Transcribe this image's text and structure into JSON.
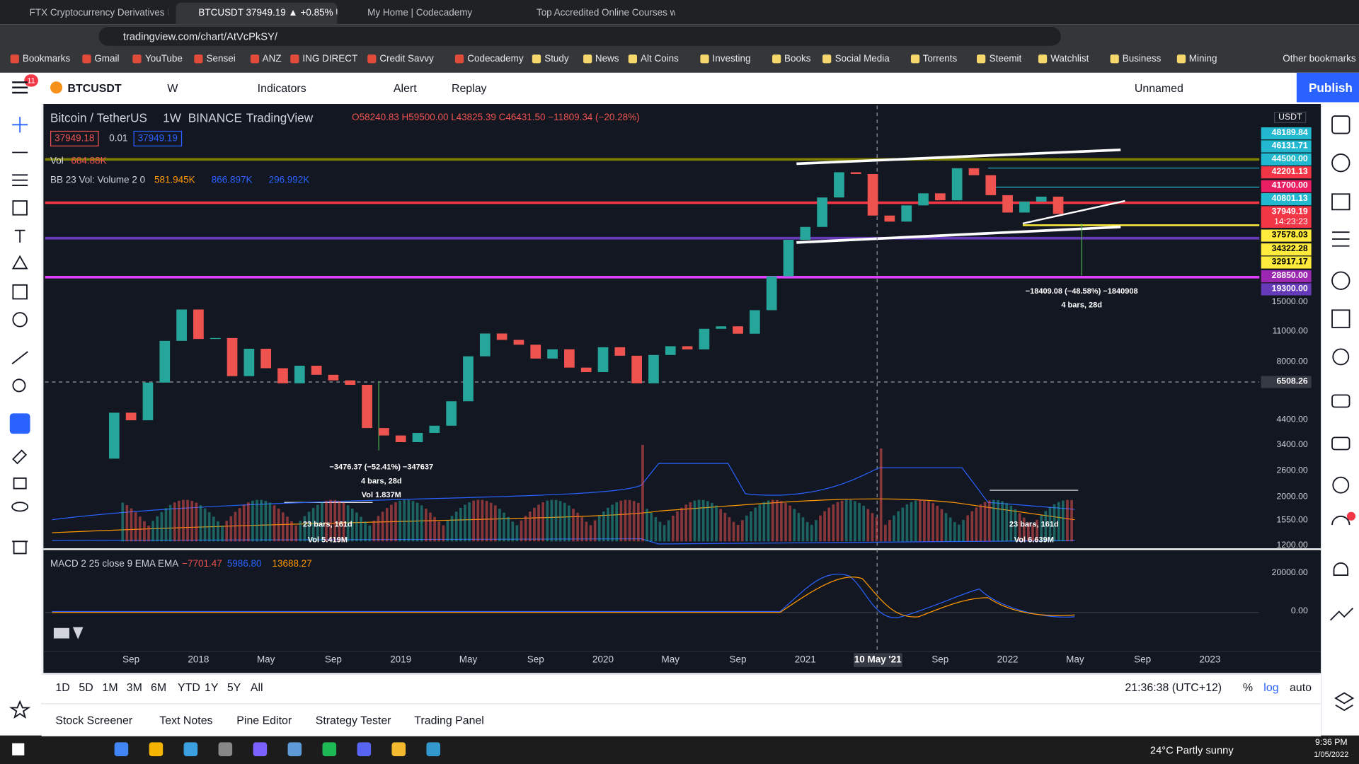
{
  "browser": {
    "tabs": [
      "FTX Cryptocurrency Derivatives E",
      "BTCUSDT 37949.19 ▲ +0.85% Un",
      "My Home | Codecademy",
      "Top Accredited Online Courses w"
    ],
    "url": "tradingview.com/chart/AtVcPkSY/",
    "bookmarks": [
      "Bookmarks",
      "Gmail",
      "YouTube",
      "Sensei",
      "ANZ",
      "ING DIRECT",
      "Credit Savvy",
      "Codecademy",
      "Study",
      "News",
      "Alt Coins",
      "Investing",
      "Books",
      "Social Media",
      "Torrents",
      "Steemit",
      "Watchlist",
      "Business",
      "Mining"
    ],
    "other_bookmarks": "Other bookmarks"
  },
  "toolbar": {
    "badge": "11",
    "symbol": "BTCUSDT",
    "interval": "W",
    "indicators": "Indicators",
    "alert": "Alert",
    "replay": "Replay",
    "layout": "Unnamed",
    "publish": "Publish"
  },
  "legend": {
    "symbol": "Bitcoin / TetherUS",
    "interval": "1W",
    "exchange": "BINANCE",
    "source": "TradingView",
    "ohlc": "O58240.83 H59500.00 L43825.39 C46431.50 −11809.34 (−20.28%)",
    "sell": "37949.18",
    "spread": "0.01",
    "buy": "37949.19",
    "vol_label": "Vol",
    "vol_value": "684.88K",
    "bb_label": "BB 23 Vol: Volume 2 0",
    "bb_values": [
      {
        "text": "581.945K",
        "color": "#ff9800"
      },
      {
        "text": "866.897K",
        "color": "#2962ff"
      },
      {
        "text": "296.992K",
        "color": "#2962ff"
      }
    ],
    "macd_label": "MACD 2 25 close 9 EMA EMA",
    "macd_values": [
      {
        "text": "−7701.47",
        "color": "#ef5350"
      },
      {
        "text": "5986.80",
        "color": "#2962ff"
      },
      {
        "text": "13688.27",
        "color": "#ff9800"
      }
    ]
  },
  "price_axis": {
    "currency": "USDT",
    "countdown": "14:23:23",
    "labels": [
      {
        "text": "48189.84",
        "color": "#22b8cf"
      },
      {
        "text": "46131.71",
        "color": "#22b8cf"
      },
      {
        "text": "44500.00",
        "color": "#22b8cf"
      },
      {
        "text": "42201.13",
        "color": "#f23645"
      },
      {
        "text": "41700.00",
        "color": "#e91e63"
      },
      {
        "text": "40801.13",
        "color": "#22b8cf"
      },
      {
        "text": "37949.19",
        "color": "#f23645"
      },
      {
        "text": "37578.03",
        "color": "#ffeb3b"
      },
      {
        "text": "34322.28",
        "color": "#ffeb3b"
      },
      {
        "text": "32917.17",
        "color": "#ffeb3b"
      },
      {
        "text": "28850.00",
        "color": "#9c27b0"
      },
      {
        "text": "19300.00",
        "color": "#673ab7"
      },
      {
        "text": "15000.00",
        "color": null
      },
      {
        "text": "11000.00",
        "color": null
      },
      {
        "text": "8000.00",
        "color": null
      },
      {
        "text": "6508.26",
        "color": "#363a45"
      },
      {
        "text": "4400.00",
        "color": null
      },
      {
        "text": "3400.00",
        "color": null
      },
      {
        "text": "2600.00",
        "color": null
      },
      {
        "text": "2000.00",
        "color": null
      },
      {
        "text": "1550.00",
        "color": null
      },
      {
        "text": "1200.00",
        "color": null
      }
    ]
  },
  "macd_axis": [
    "20000.00",
    "0.00"
  ],
  "time_axis": [
    "Sep",
    "2018",
    "May",
    "Sep",
    "2019",
    "May",
    "Sep",
    "2020",
    "May",
    "Sep",
    "2021",
    "10 May '21",
    "Sep",
    "2022",
    "May",
    "Sep",
    "2023"
  ],
  "measurements": [
    [
      "−18409.08 (−48.58%) −1840908",
      "4 bars, 28d"
    ],
    [
      "−3476.37 (−52.41%) −347637",
      "4 bars, 28d",
      "Vol 1.837M"
    ],
    [
      "23 bars, 161d",
      "Vol 5.419M"
    ],
    [
      "23 bars, 161d",
      "Vol 6.639M"
    ]
  ],
  "price_estimate": {
    "up_color": "#26a69a",
    "down_color": "#ef5350",
    "open": 2900,
    "values": [
      4700,
      4340,
      6450,
      10000,
      13900,
      10200,
      10300,
      6900,
      9200,
      7500,
      6400,
      7700,
      7000,
      6600,
      6300,
      4000,
      3700,
      3450,
      3800,
      4100,
      5300,
      8500,
      10800,
      10100,
      9600,
      8300,
      9150,
      7550,
      7200,
      9350,
      8550,
      6400,
      8620,
      9450,
      9140,
      11350,
      11650,
      10780,
      13800,
      19700,
      28900,
      33100,
      45100,
      58800,
      57700,
      37300,
      35000,
      41500,
      47100,
      43800,
      61300,
      57000,
      46200,
      38500,
      43200,
      45500,
      37949
    ]
  },
  "ranges": [
    "1D",
    "5D",
    "1M",
    "3M",
    "6M",
    "YTD",
    "1Y",
    "5Y",
    "All"
  ],
  "clock": "21:36:38 (UTC+12)",
  "scale_options": [
    "%",
    "log",
    "auto"
  ],
  "bottom_tabs": [
    "Stock Screener",
    "Text Notes",
    "Pine Editor",
    "Strategy Tester",
    "Trading Panel"
  ],
  "taskbar": {
    "weather": "24°C  Partly sunny",
    "time": "9:36 PM",
    "date": "1/05/2022"
  }
}
